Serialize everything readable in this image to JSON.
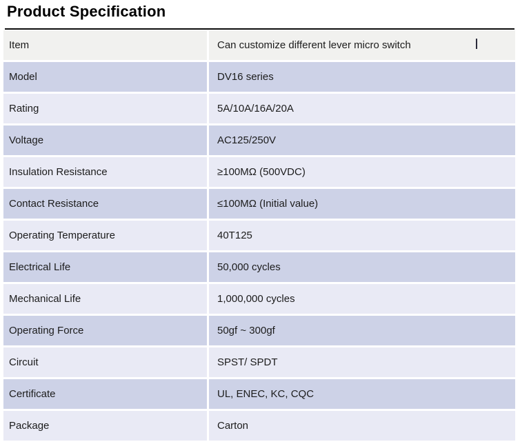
{
  "page": {
    "title": "Product Specification"
  },
  "colors": {
    "title_text": "#000000",
    "rule": "#0d0d0d",
    "row_text": "#1c1c1c",
    "tone_gray": "#f1f1ef",
    "tone_dark": "#cdd2e7",
    "tone_light": "#e9eaf5",
    "background": "#ffffff"
  },
  "table": {
    "rows": [
      {
        "label": "Item",
        "value": "Can customize different lever micro switch",
        "tone": "gray"
      },
      {
        "label": "Model",
        "value": "DV16 series",
        "tone": "dark"
      },
      {
        "label": "Rating",
        "value": "5A/10A/16A/20A",
        "tone": "light"
      },
      {
        "label": "Voltage",
        "value": "AC125/250V",
        "tone": "dark"
      },
      {
        "label": "Insulation Resistance",
        "value": "≥100MΩ (500VDC)",
        "tone": "light"
      },
      {
        "label": "Contact Resistance",
        "value": "≤100MΩ (Initial value)",
        "tone": "dark"
      },
      {
        "label": "Operating Temperature",
        "value": "40T125",
        "tone": "light"
      },
      {
        "label": "Electrical Life",
        "value": "50,000 cycles",
        "tone": "dark"
      },
      {
        "label": "Mechanical Life",
        "value": "1,000,000 cycles",
        "tone": "light"
      },
      {
        "label": "Operating Force",
        "value": "50gf ~ 300gf",
        "tone": "dark"
      },
      {
        "label": "Circuit",
        "value": "SPST/ SPDT",
        "tone": "light"
      },
      {
        "label": "Certificate",
        "value": "UL, ENEC, KC, CQC",
        "tone": "dark"
      },
      {
        "label": "Package",
        "value": "Carton",
        "tone": "light"
      }
    ]
  }
}
